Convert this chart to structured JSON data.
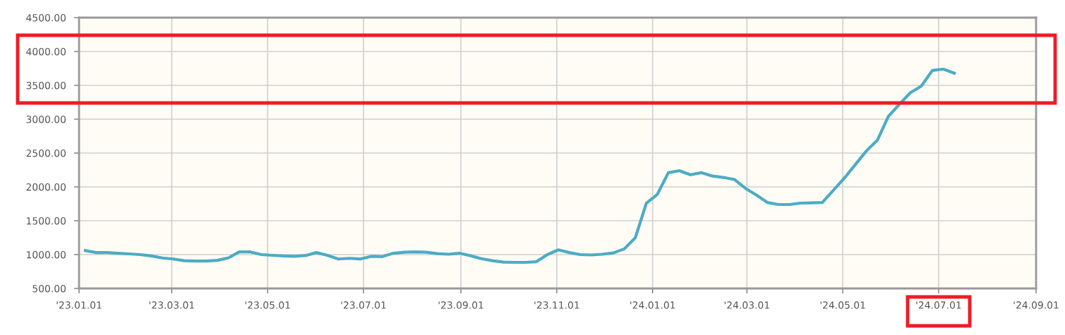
{
  "chart_data": {
    "type": "line",
    "x": [
      "2023-01-05",
      "2023-01-12",
      "2023-01-19",
      "2023-01-26",
      "2023-02-02",
      "2023-02-09",
      "2023-02-16",
      "2023-02-23",
      "2023-03-02",
      "2023-03-09",
      "2023-03-16",
      "2023-03-23",
      "2023-03-30",
      "2023-04-06",
      "2023-04-13",
      "2023-04-20",
      "2023-04-27",
      "2023-05-04",
      "2023-05-11",
      "2023-05-18",
      "2023-05-25",
      "2023-06-01",
      "2023-06-08",
      "2023-06-15",
      "2023-06-22",
      "2023-06-29",
      "2023-07-06",
      "2023-07-13",
      "2023-07-20",
      "2023-07-27",
      "2023-08-03",
      "2023-08-10",
      "2023-08-17",
      "2023-08-24",
      "2023-08-31",
      "2023-09-07",
      "2023-09-14",
      "2023-09-21",
      "2023-09-28",
      "2023-10-05",
      "2023-10-12",
      "2023-10-19",
      "2023-10-26",
      "2023-11-02",
      "2023-11-09",
      "2023-11-16",
      "2023-11-23",
      "2023-11-30",
      "2023-12-07",
      "2023-12-14",
      "2023-12-21",
      "2023-12-28",
      "2024-01-04",
      "2024-01-11",
      "2024-01-18",
      "2024-01-25",
      "2024-02-01",
      "2024-02-08",
      "2024-02-15",
      "2024-02-22",
      "2024-02-29",
      "2024-03-07",
      "2024-03-14",
      "2024-03-21",
      "2024-03-28",
      "2024-04-04",
      "2024-04-11",
      "2024-04-18",
      "2024-04-25",
      "2024-05-02",
      "2024-05-09",
      "2024-05-16",
      "2024-05-23",
      "2024-05-30",
      "2024-06-06",
      "2024-06-13",
      "2024-06-20",
      "2024-06-27",
      "2024-07-04",
      "2024-07-11"
    ],
    "series": [
      {
        "color": "#4bacc6",
        "values": [
          1060,
          1030,
          1030,
          1020,
          1010,
          1000,
          980,
          950,
          935,
          910,
          905,
          905,
          915,
          950,
          1040,
          1040,
          1000,
          990,
          980,
          975,
          985,
          1030,
          990,
          935,
          945,
          935,
          975,
          970,
          1020,
          1035,
          1040,
          1035,
          1015,
          1005,
          1020,
          985,
          940,
          910,
          890,
          885,
          885,
          895,
          1000,
          1070,
          1030,
          1000,
          995,
          1005,
          1025,
          1085,
          1250,
          1760,
          1890,
          2210,
          2240,
          2180,
          2210,
          2160,
          2140,
          2110,
          1980,
          1880,
          1770,
          1740,
          1740,
          1760,
          1765,
          1770,
          1950,
          2130,
          2330,
          2530,
          2690,
          3040,
          3220,
          3390,
          3490,
          3720,
          3740,
          3680
        ]
      }
    ],
    "xlim": [
      "2023-01-01",
      "2024-09-01"
    ],
    "xticks": [
      {
        "value": "2023-01-01",
        "label": "'23.01.01"
      },
      {
        "value": "2023-03-01",
        "label": "'23.03.01"
      },
      {
        "value": "2023-05-01",
        "label": "'23.05.01"
      },
      {
        "value": "2023-07-01",
        "label": "'23.07.01"
      },
      {
        "value": "2023-09-01",
        "label": "'23.09.01"
      },
      {
        "value": "2023-11-01",
        "label": "'23.11.01"
      },
      {
        "value": "2024-01-01",
        "label": "'24.01.01"
      },
      {
        "value": "2024-03-01",
        "label": "'24.03.01"
      },
      {
        "value": "2024-05-01",
        "label": "'24.05.01"
      },
      {
        "value": "2024-07-01",
        "label": "'24.07.01"
      },
      {
        "value": "2024-09-01",
        "label": "'24.09.01"
      }
    ],
    "ylim": [
      500,
      4500
    ],
    "yticks": [
      {
        "value": 500,
        "label": "500.00"
      },
      {
        "value": 1000,
        "label": "1000.00"
      },
      {
        "value": 1500,
        "label": "1500.00"
      },
      {
        "value": 2000,
        "label": "2000.00"
      },
      {
        "value": 2500,
        "label": "2500.00"
      },
      {
        "value": 3000,
        "label": "3000.00"
      },
      {
        "value": 3500,
        "label": "3500.00"
      },
      {
        "value": 4000,
        "label": "4000.00"
      },
      {
        "value": 4500,
        "label": "4500.00"
      }
    ],
    "grid": true,
    "marker": "none",
    "line_style": "solid"
  }
}
